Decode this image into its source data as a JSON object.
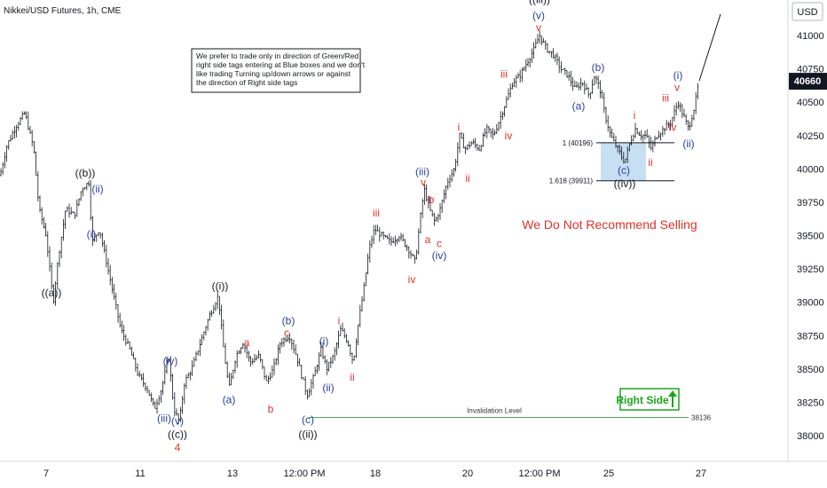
{
  "chart_data": {
    "type": "candlestick",
    "title": "Nikkei/USD Futures, 1h, CME",
    "price_axis_unit": "USD",
    "last_price": "40660",
    "y_ticks": [
      41000,
      40750,
      40500,
      40250,
      40000,
      39750,
      39500,
      39250,
      39000,
      38750,
      38500,
      38250,
      38000
    ],
    "ylim": [
      37800,
      41250
    ],
    "x_ticks": [
      "7",
      "11",
      "13",
      "12:00 PM",
      "18",
      "20",
      "12:00 PM",
      "25",
      "27"
    ],
    "x_tick_pos": [
      52,
      158,
      262,
      343,
      423,
      527,
      608,
      686,
      790
    ],
    "price_path": [
      [
        0,
        39950
      ],
      [
        8,
        40180
      ],
      [
        18,
        40320
      ],
      [
        28,
        40420
      ],
      [
        38,
        40150
      ],
      [
        44,
        39700
      ],
      [
        52,
        39500
      ],
      [
        60,
        39000
      ],
      [
        66,
        39350
      ],
      [
        74,
        39700
      ],
      [
        84,
        39650
      ],
      [
        92,
        39850
      ],
      [
        100,
        39900
      ],
      [
        104,
        39450
      ],
      [
        112,
        39550
      ],
      [
        120,
        39300
      ],
      [
        128,
        39050
      ],
      [
        136,
        38800
      ],
      [
        146,
        38650
      ],
      [
        156,
        38450
      ],
      [
        166,
        38350
      ],
      [
        174,
        38200
      ],
      [
        182,
        38350
      ],
      [
        190,
        38600
      ],
      [
        196,
        38200
      ],
      [
        202,
        38100
      ],
      [
        208,
        38400
      ],
      [
        216,
        38500
      ],
      [
        226,
        38700
      ],
      [
        236,
        38900
      ],
      [
        246,
        39050
      ],
      [
        252,
        38650
      ],
      [
        258,
        38350
      ],
      [
        266,
        38600
      ],
      [
        274,
        38700
      ],
      [
        282,
        38550
      ],
      [
        292,
        38600
      ],
      [
        300,
        38400
      ],
      [
        308,
        38500
      ],
      [
        316,
        38700
      ],
      [
        326,
        38750
      ],
      [
        334,
        38600
      ],
      [
        340,
        38450
      ],
      [
        346,
        38300
      ],
      [
        354,
        38450
      ],
      [
        362,
        38650
      ],
      [
        368,
        38500
      ],
      [
        376,
        38600
      ],
      [
        384,
        38800
      ],
      [
        392,
        38700
      ],
      [
        398,
        38550
      ],
      [
        404,
        38850
      ],
      [
        410,
        39100
      ],
      [
        416,
        39400
      ],
      [
        422,
        39550
      ],
      [
        430,
        39500
      ],
      [
        440,
        39450
      ],
      [
        450,
        39500
      ],
      [
        460,
        39400
      ],
      [
        468,
        39300
      ],
      [
        474,
        39650
      ],
      [
        478,
        39850
      ],
      [
        484,
        39700
      ],
      [
        490,
        39600
      ],
      [
        496,
        39700
      ],
      [
        504,
        39900
      ],
      [
        512,
        40000
      ],
      [
        518,
        40250
      ],
      [
        524,
        40150
      ],
      [
        532,
        40200
      ],
      [
        540,
        40150
      ],
      [
        548,
        40300
      ],
      [
        556,
        40250
      ],
      [
        562,
        40350
      ],
      [
        570,
        40500
      ],
      [
        578,
        40650
      ],
      [
        586,
        40700
      ],
      [
        594,
        40800
      ],
      [
        602,
        40900
      ],
      [
        608,
        41000
      ],
      [
        616,
        40900
      ],
      [
        624,
        40850
      ],
      [
        632,
        40750
      ],
      [
        640,
        40700
      ],
      [
        648,
        40600
      ],
      [
        656,
        40650
      ],
      [
        664,
        40550
      ],
      [
        670,
        40700
      ],
      [
        676,
        40600
      ],
      [
        682,
        40400
      ],
      [
        688,
        40250
      ],
      [
        696,
        40150
      ],
      [
        704,
        40050
      ],
      [
        710,
        40200
      ],
      [
        716,
        40300
      ],
      [
        722,
        40250
      ],
      [
        728,
        40250
      ],
      [
        734,
        40150
      ],
      [
        740,
        40250
      ],
      [
        748,
        40300
      ],
      [
        756,
        40350
      ],
      [
        764,
        40500
      ],
      [
        770,
        40400
      ],
      [
        776,
        40300
      ],
      [
        782,
        40450
      ],
      [
        788,
        40660
      ]
    ],
    "projection": [
      [
        788,
        40660
      ],
      [
        812,
        41160
      ]
    ],
    "wave_labels": [
      {
        "text": "((a))",
        "x": 58,
        "y": 39070,
        "color": "#131722"
      },
      {
        "text": "((b))",
        "x": 96,
        "y": 39970,
        "color": "#131722"
      },
      {
        "text": "(ii)",
        "x": 110,
        "y": 39850,
        "color": "#2a3fa0"
      },
      {
        "text": "(i)",
        "x": 103,
        "y": 39510,
        "color": "#2a3fa0"
      },
      {
        "text": "(iv)",
        "x": 192,
        "y": 38560,
        "color": "#2a3fa0"
      },
      {
        "text": "(iii)",
        "x": 185,
        "y": 38130,
        "color": "#2a3fa0"
      },
      {
        "text": "(v)",
        "x": 200,
        "y": 38110,
        "color": "#2a3fa0"
      },
      {
        "text": "((c))",
        "x": 200,
        "y": 38010,
        "color": "#131722"
      },
      {
        "text": "4",
        "x": 200,
        "y": 37910,
        "color": "#e0312b"
      },
      {
        "text": "((i))",
        "x": 248,
        "y": 39120,
        "color": "#131722"
      },
      {
        "text": "(a)",
        "x": 258,
        "y": 38270,
        "color": "#2a3fa0"
      },
      {
        "text": "a",
        "x": 278,
        "y": 38700,
        "color": "#e0312b"
      },
      {
        "text": "b",
        "x": 305,
        "y": 38200,
        "color": "#e0312b"
      },
      {
        "text": "(b)",
        "x": 325,
        "y": 38860,
        "color": "#2a3fa0"
      },
      {
        "text": "c",
        "x": 323,
        "y": 38770,
        "color": "#e0312b"
      },
      {
        "text": "(c)",
        "x": 347,
        "y": 38120,
        "color": "#2a3fa0"
      },
      {
        "text": "((ii))",
        "x": 347,
        "y": 38010,
        "color": "#131722"
      },
      {
        "text": "(i)",
        "x": 365,
        "y": 38710,
        "color": "#2a3fa0"
      },
      {
        "text": "(ii)",
        "x": 370,
        "y": 38360,
        "color": "#2a3fa0"
      },
      {
        "text": "i",
        "x": 382,
        "y": 38860,
        "color": "#e0312b"
      },
      {
        "text": "ii",
        "x": 397,
        "y": 38440,
        "color": "#e0312b"
      },
      {
        "text": "iii",
        "x": 424,
        "y": 39670,
        "color": "#e0312b"
      },
      {
        "text": "iv",
        "x": 464,
        "y": 39170,
        "color": "#e0312b"
      },
      {
        "text": "(iii)",
        "x": 476,
        "y": 39980,
        "color": "#2a3fa0"
      },
      {
        "text": "v",
        "x": 477,
        "y": 39900,
        "color": "#e0312b"
      },
      {
        "text": "b",
        "x": 486,
        "y": 39770,
        "color": "#e0312b"
      },
      {
        "text": "a",
        "x": 482,
        "y": 39470,
        "color": "#e0312b"
      },
      {
        "text": "c",
        "x": 495,
        "y": 39440,
        "color": "#e0312b"
      },
      {
        "text": "(iv)",
        "x": 495,
        "y": 39350,
        "color": "#2a3fa0"
      },
      {
        "text": "i",
        "x": 517,
        "y": 40310,
        "color": "#e0312b"
      },
      {
        "text": "ii",
        "x": 527,
        "y": 39930,
        "color": "#e0312b"
      },
      {
        "text": "iii",
        "x": 568,
        "y": 40710,
        "color": "#e0312b"
      },
      {
        "text": "iv",
        "x": 573,
        "y": 40250,
        "color": "#e0312b"
      },
      {
        "text": "((iii))",
        "x": 608,
        "y": 41270,
        "color": "#131722"
      },
      {
        "text": "(v)",
        "x": 607,
        "y": 41150,
        "color": "#2a3fa0"
      },
      {
        "text": "v",
        "x": 607,
        "y": 41060,
        "color": "#e0312b"
      },
      {
        "text": "(a)",
        "x": 652,
        "y": 40470,
        "color": "#2a3fa0"
      },
      {
        "text": "(b)",
        "x": 674,
        "y": 40760,
        "color": "#2a3fa0"
      },
      {
        "text": "i",
        "x": 715,
        "y": 40400,
        "color": "#e0312b"
      },
      {
        "text": "ii",
        "x": 733,
        "y": 40050,
        "color": "#e0312b"
      },
      {
        "text": "iii",
        "x": 750,
        "y": 40530,
        "color": "#e0312b"
      },
      {
        "text": "iv",
        "x": 758,
        "y": 40310,
        "color": "#e0312b"
      },
      {
        "text": "(i)",
        "x": 764,
        "y": 40700,
        "color": "#2a3fa0"
      },
      {
        "text": "v",
        "x": 763,
        "y": 40610,
        "color": "#e0312b"
      },
      {
        "text": "(ii)",
        "x": 776,
        "y": 40190,
        "color": "#2a3fa0"
      },
      {
        "text": "(c)",
        "x": 703,
        "y": 39990,
        "color": "#2a3fa0"
      },
      {
        "text": "((iv))",
        "x": 704,
        "y": 39890,
        "color": "#131722"
      }
    ],
    "fib_levels": [
      {
        "label": "1 (40196)",
        "price": 40196
      },
      {
        "label": "1.618 (39911)",
        "price": 39911
      }
    ],
    "blue_box": {
      "x0": 677,
      "x1": 728,
      "p_top": 40196,
      "p_bottom": 39911
    },
    "invalidation": {
      "label": "Invalidation Level",
      "price": 38136,
      "value_label": "38136",
      "x0": 348,
      "x1": 776
    }
  },
  "note": {
    "lines": [
      "We prefer to trade only in direction of Green/Red",
      "right side tags entering at Blue boxes and we don't",
      "like trading Turning up/down arrows or against",
      "the direction of Right side tags"
    ]
  },
  "warning": "We Do Not Recommend Selling",
  "right_side_tag": "Right Side",
  "colors": {
    "candle": "#131722",
    "wave_black": "#131722",
    "wave_blue": "#2a3fa0",
    "wave_red": "#e0312b",
    "invalidation_line": "#4caf50",
    "blue_box": "#bcd9f0",
    "right_side": "#1aa51a",
    "last_price_bg": "#131722"
  }
}
